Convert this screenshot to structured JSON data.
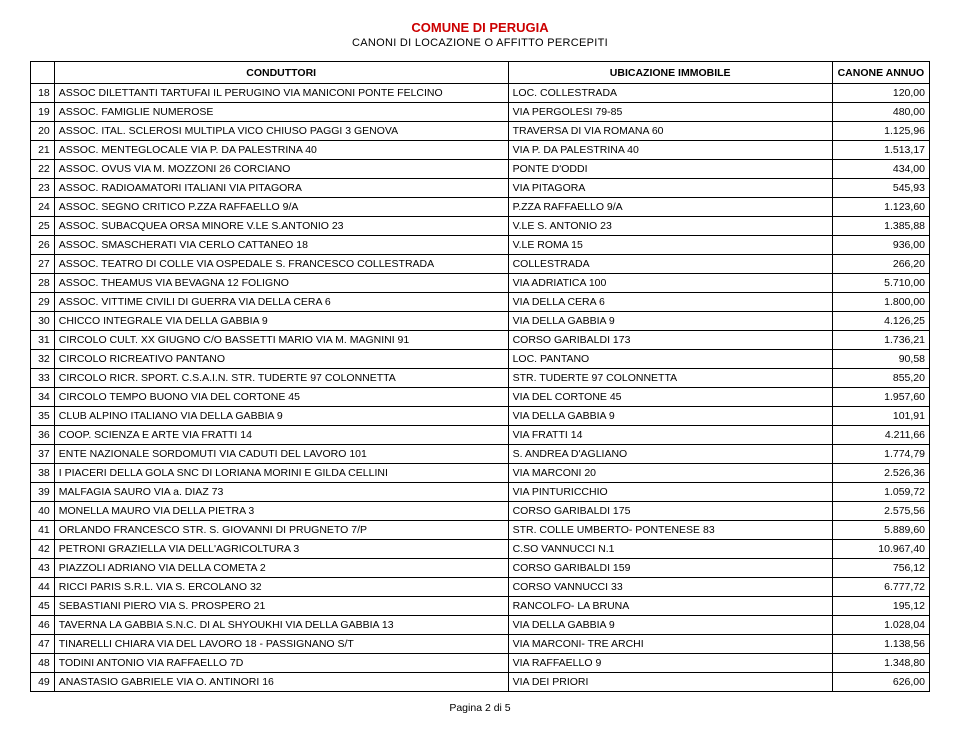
{
  "header": {
    "title": "COMUNE DI PERUGIA",
    "subtitle": "CANONI DI LOCAZIONE O AFFITTO PERCEPITI"
  },
  "columns": {
    "conduttori": "CONDUTTORI",
    "ubicazione": "UBICAZIONE IMMOBILE",
    "canone": "CANONE ANNUO"
  },
  "rows": [
    {
      "n": "18",
      "cond": "ASSOC DILETTANTI TARTUFAI IL PERUGINO VIA MANICONI PONTE FELCINO",
      "ubi": "LOC. COLLESTRADA",
      "can": "120,00"
    },
    {
      "n": "19",
      "cond": "ASSOC. FAMIGLIE NUMEROSE",
      "ubi": "VIA PERGOLESI 79-85",
      "can": "480,00"
    },
    {
      "n": "20",
      "cond": "ASSOC. ITAL. SCLEROSI MULTIPLA VICO CHIUSO PAGGI 3 GENOVA",
      "ubi": "TRAVERSA DI VIA ROMANA 60",
      "can": "1.125,96"
    },
    {
      "n": "21",
      "cond": "ASSOC. MENTEGLOCALE VIA P. DA PALESTRINA 40",
      "ubi": "VIA P. DA PALESTRINA 40",
      "can": "1.513,17"
    },
    {
      "n": "22",
      "cond": "ASSOC. OVUS VIA M. MOZZONI 26 CORCIANO",
      "ubi": "PONTE D'ODDI",
      "can": "434,00"
    },
    {
      "n": "23",
      "cond": "ASSOC. RADIOAMATORI ITALIANI VIA PITAGORA",
      "ubi": "VIA PITAGORA",
      "can": "545,93"
    },
    {
      "n": "24",
      "cond": "ASSOC. SEGNO CRITICO P.ZZA RAFFAELLO 9/A",
      "ubi": "P.ZZA RAFFAELLO 9/A",
      "can": "1.123,60"
    },
    {
      "n": "25",
      "cond": "ASSOC. SUBACQUEA ORSA MINORE V.LE S.ANTONIO 23",
      "ubi": "V.LE S. ANTONIO 23",
      "can": "1.385,88"
    },
    {
      "n": "26",
      "cond": "ASSOC. SMASCHERATI VIA CERLO CATTANEO 18",
      "ubi": "V.LE ROMA 15",
      "can": "936,00"
    },
    {
      "n": "27",
      "cond": "ASSOC. TEATRO DI COLLE VIA OSPEDALE S. FRANCESCO COLLESTRADA",
      "ubi": "COLLESTRADA",
      "can": "266,20"
    },
    {
      "n": "28",
      "cond": "ASSOC. THEAMUS VIA BEVAGNA 12 FOLIGNO",
      "ubi": "VIA ADRIATICA 100",
      "can": "5.710,00"
    },
    {
      "n": "29",
      "cond": "ASSOC. VITTIME CIVILI DI GUERRA VIA DELLA CERA 6",
      "ubi": "VIA DELLA CERA 6",
      "can": "1.800,00"
    },
    {
      "n": "30",
      "cond": "CHICCO INTEGRALE VIA DELLA GABBIA 9",
      "ubi": "VIA DELLA GABBIA 9",
      "can": "4.126,25"
    },
    {
      "n": "31",
      "cond": "CIRCOLO CULT. XX GIUGNO C/O BASSETTI MARIO VIA M. MAGNINI 91",
      "ubi": "CORSO GARIBALDI 173",
      "can": "1.736,21"
    },
    {
      "n": "32",
      "cond": "CIRCOLO RICREATIVO PANTANO",
      "ubi": "LOC. PANTANO",
      "can": "90,58"
    },
    {
      "n": "33",
      "cond": "CIRCOLO RICR. SPORT. C.S.A.I.N. STR. TUDERTE 97 COLONNETTA",
      "ubi": "STR. TUDERTE 97 COLONNETTA",
      "can": "855,20"
    },
    {
      "n": "34",
      "cond": "CIRCOLO TEMPO BUONO VIA DEL CORTONE 45",
      "ubi": "VIA DEL CORTONE 45",
      "can": "1.957,60"
    },
    {
      "n": "35",
      "cond": "CLUB ALPINO ITALIANO VIA DELLA GABBIA 9",
      "ubi": "VIA DELLA GABBIA 9",
      "can": "101,91"
    },
    {
      "n": "36",
      "cond": "COOP. SCIENZA E ARTE VIA FRATTI 14",
      "ubi": "VIA FRATTI 14",
      "can": "4.211,66"
    },
    {
      "n": "37",
      "cond": "ENTE NAZIONALE SORDOMUTI VIA CADUTI DEL LAVORO 101",
      "ubi": "S. ANDREA D'AGLIANO",
      "can": "1.774,79"
    },
    {
      "n": "38",
      "cond": "I PIACERI DELLA GOLA SNC DI LORIANA MORINI E GILDA CELLINI",
      "ubi": "VIA MARCONI 20",
      "can": "2.526,36"
    },
    {
      "n": "39",
      "cond": "MALFAGIA SAURO VIA a. DIAZ 73",
      "ubi": "VIA PINTURICCHIO",
      "can": "1.059,72"
    },
    {
      "n": "40",
      "cond": "MONELLA MAURO VIA DELLA PIETRA 3",
      "ubi": "CORSO GARIBALDI 175",
      "can": "2.575,56"
    },
    {
      "n": "41",
      "cond": "ORLANDO FRANCESCO STR. S. GIOVANNI DI PRUGNETO 7/P",
      "ubi": "STR. COLLE UMBERTO- PONTENESE 83",
      "can": "5.889,60"
    },
    {
      "n": "42",
      "cond": "PETRONI GRAZIELLA VIA DELL'AGRICOLTURA 3",
      "ubi": "C.SO VANNUCCI N.1",
      "can": "10.967,40"
    },
    {
      "n": "43",
      "cond": "PIAZZOLI ADRIANO VIA DELLA COMETA 2",
      "ubi": "CORSO GARIBALDI 159",
      "can": "756,12"
    },
    {
      "n": "44",
      "cond": "RICCI PARIS S.R.L. VIA S. ERCOLANO 32",
      "ubi": "CORSO VANNUCCI 33",
      "can": "6.777,72"
    },
    {
      "n": "45",
      "cond": "SEBASTIANI PIERO VIA S. PROSPERO 21",
      "ubi": "RANCOLFO- LA BRUNA",
      "can": "195,12"
    },
    {
      "n": "46",
      "cond": "TAVERNA LA GABBIA S.N.C. DI AL SHYOUKHI VIA DELLA GABBIA 13",
      "ubi": "VIA DELLA GABBIA 9",
      "can": "1.028,04"
    },
    {
      "n": "47",
      "cond": "TINARELLI CHIARA VIA DEL LAVORO 18 - PASSIGNANO S/T",
      "ubi": "VIA MARCONI- TRE ARCHI",
      "can": "1.138,56"
    },
    {
      "n": "48",
      "cond": "TODINI ANTONIO VIA RAFFAELLO 7D",
      "ubi": "VIA RAFFAELLO 9",
      "can": "1.348,80"
    },
    {
      "n": "49",
      "cond": "ANASTASIO GABRIELE VIA O. ANTINORI 16",
      "ubi": "VIA DEI PRIORI",
      "can": "626,00"
    }
  ],
  "footer": {
    "page": "Pagina 2 di 5"
  },
  "style": {
    "title_color": "#cc0000",
    "border_color": "#000000",
    "background": "#ffffff"
  }
}
